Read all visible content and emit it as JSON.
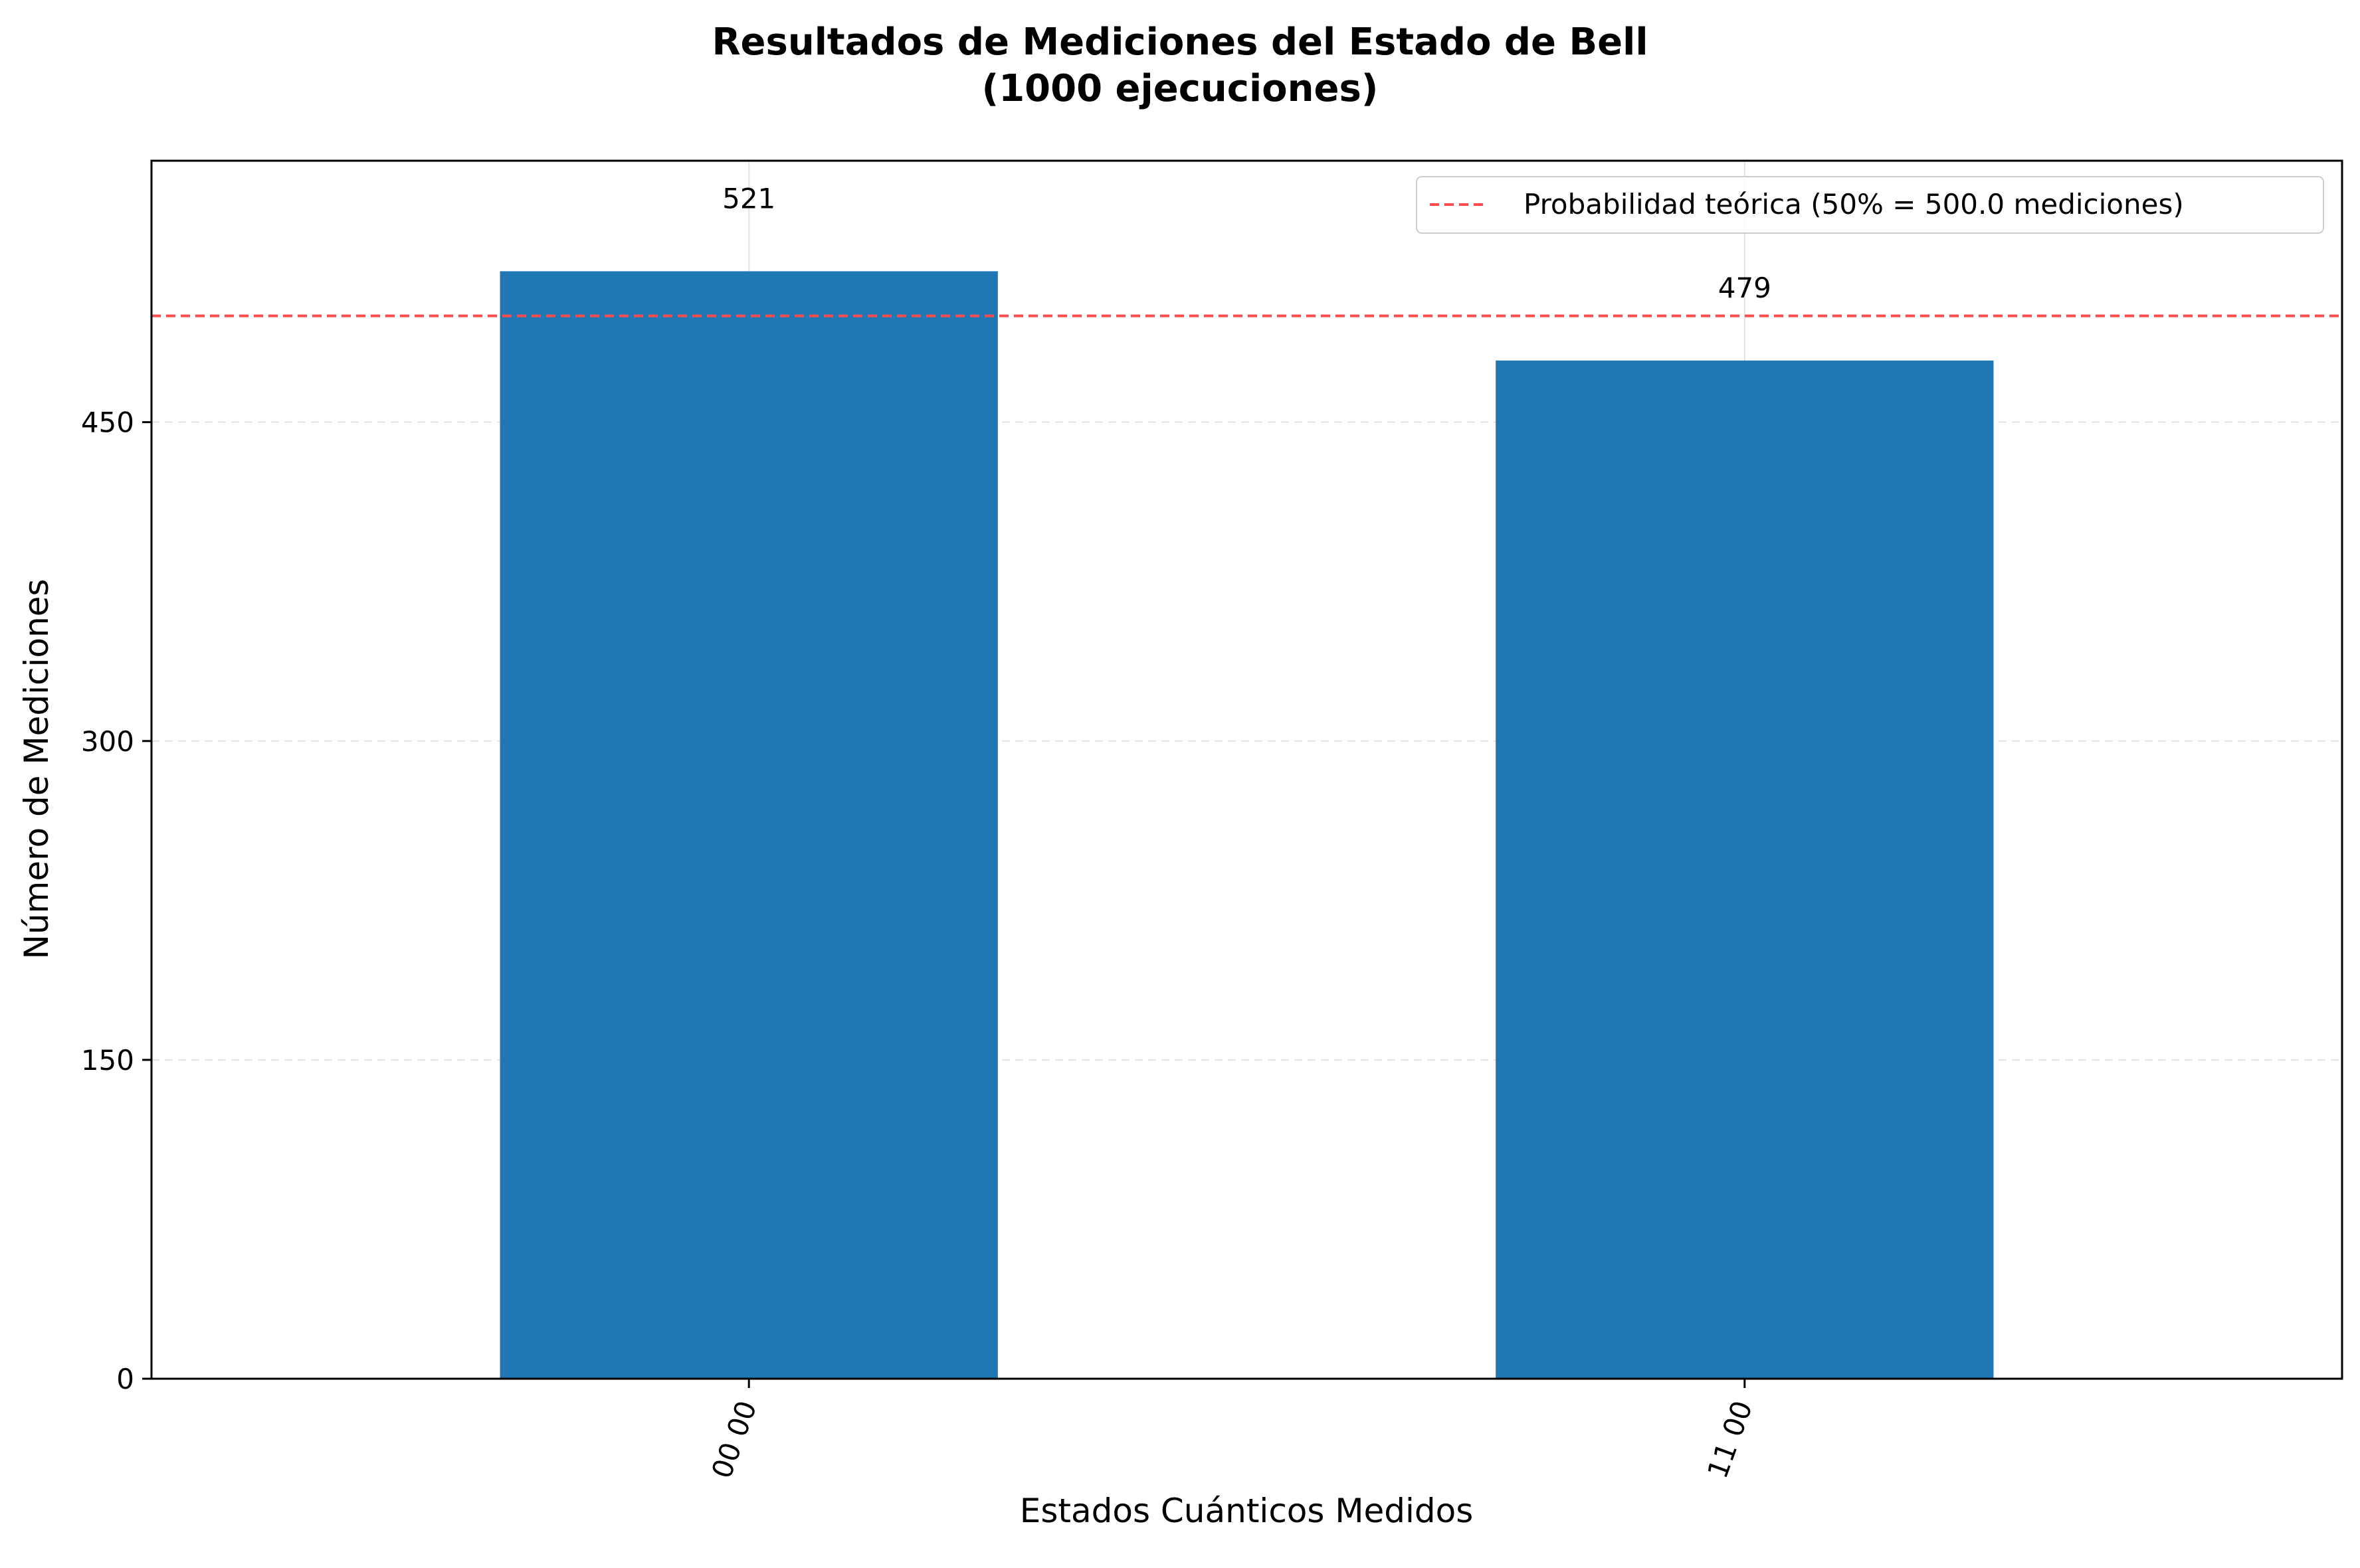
{
  "chart_data": {
    "type": "bar",
    "title": "Resultados de Mediciones del Estado de Bell",
    "subtitle": "(1000 ejecuciones)",
    "xlabel": "Estados Cuánticos Medidos",
    "ylabel": "Número de Mediciones",
    "categories": [
      "00 00",
      "11 00"
    ],
    "values": [
      521,
      479
    ],
    "value_labels": [
      "521",
      "479"
    ],
    "ylim": [
      0,
      573
    ],
    "yticks": [
      0,
      150,
      300,
      450
    ],
    "ytick_labels": [
      "0",
      "150",
      "300",
      "450"
    ],
    "x_tick_rotation_deg": 70,
    "grid": true,
    "bar_color": "#1f77b4",
    "reference_line": {
      "value": 500.0,
      "label": "Probabilidad teórica (50% = 500.0 mediciones)",
      "color": "#ff4d4d",
      "style": "dashed"
    },
    "legend_position": "top-right"
  }
}
